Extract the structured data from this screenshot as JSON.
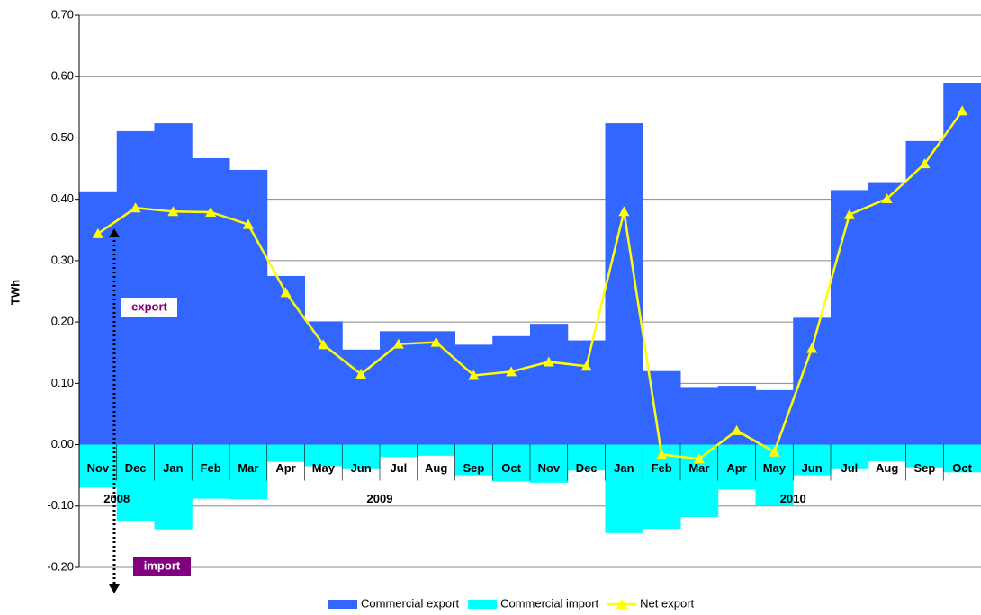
{
  "chart_data": {
    "type": "bar-line",
    "y_label": "TWh",
    "categories": [
      "Nov",
      "Dec",
      "Jan",
      "Feb",
      "Mar",
      "Apr",
      "May",
      "Jun",
      "Jul",
      "Aug",
      "Sep",
      "Oct",
      "Nov",
      "Dec",
      "Jan",
      "Feb",
      "Mar",
      "Apr",
      "May",
      "Jun",
      "Jul",
      "Aug",
      "Sep",
      "Oct"
    ],
    "years": [
      "2008",
      "2009",
      "2010"
    ],
    "series": [
      {
        "name": "Commercial export",
        "type": "bar",
        "color": "#3366ff",
        "values": [
          0.413,
          0.511,
          0.524,
          0.467,
          0.448,
          0.275,
          0.201,
          0.155,
          0.185,
          0.185,
          0.163,
          0.177,
          0.197,
          0.17,
          0.524,
          0.12,
          0.094,
          0.096,
          0.089,
          0.207,
          0.415,
          0.428,
          0.495,
          0.59
        ]
      },
      {
        "name": "Commercial import",
        "type": "bar",
        "color": "#00ffff",
        "values": [
          -0.07,
          -0.125,
          -0.138,
          -0.088,
          -0.089,
          -0.028,
          -0.035,
          -0.04,
          -0.02,
          -0.018,
          -0.05,
          -0.06,
          -0.062,
          -0.042,
          -0.144,
          -0.137,
          -0.118,
          -0.073,
          -0.1,
          -0.05,
          -0.04,
          -0.027,
          -0.037,
          -0.045
        ]
      },
      {
        "name": "Net export",
        "type": "line",
        "color": "#ffff00",
        "values": [
          0.344,
          0.386,
          0.38,
          0.379,
          0.359,
          0.248,
          0.163,
          0.115,
          0.164,
          0.167,
          0.113,
          0.119,
          0.135,
          0.128,
          0.38,
          -0.016,
          -0.023,
          0.023,
          -0.012,
          0.157,
          0.375,
          0.401,
          0.458,
          0.544
        ]
      }
    ],
    "annotations": [
      "export",
      "import"
    ],
    "ylim": [
      -0.2,
      0.7
    ],
    "yticks": [
      {
        "value": -0.2,
        "label": "-0.20"
      },
      {
        "value": -0.1,
        "label": "-0.10"
      },
      {
        "value": 0,
        "label": "0.00"
      },
      {
        "value": 0.1,
        "label": "0.10"
      },
      {
        "value": 0.2,
        "label": "0.20"
      },
      {
        "value": 0.3,
        "label": "0.30"
      },
      {
        "value": 0.4,
        "label": "0.40"
      },
      {
        "value": 0.5,
        "label": "0.50"
      },
      {
        "value": 0.6,
        "label": "0.60"
      },
      {
        "value": 0.7,
        "label": "0.70"
      }
    ],
    "grid": true,
    "legend": "bottom"
  }
}
